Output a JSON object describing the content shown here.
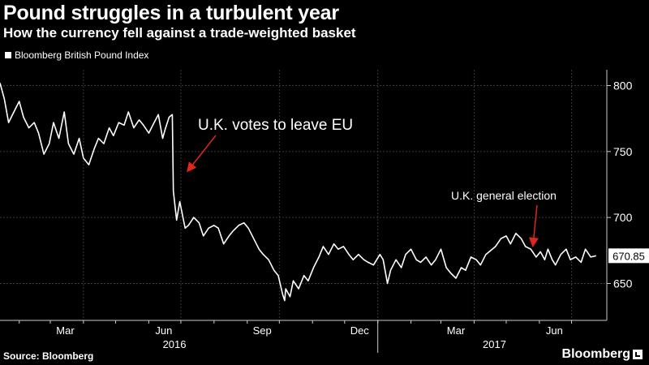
{
  "title": "Pound struggles in a turbulent year",
  "subtitle": "How the currency fell against a trade-weighted basket",
  "legend": "Bloomberg British Pound Index",
  "source": "Source: Bloomberg",
  "brand": "Bloomberg",
  "colors": {
    "background": "#000000",
    "line": "#ffffff",
    "grid": "#3a3a3a",
    "arrow": "#e0261d"
  },
  "chart_data": {
    "type": "line",
    "title": "Pound struggles in a turbulent year",
    "subtitle": "How the currency fell against a trade-weighted basket",
    "ylim": [
      622,
      812
    ],
    "y_ticks": [
      650,
      700,
      750,
      800
    ],
    "grid": true,
    "legend_position": "top-left",
    "x_tick_labels": [
      "Mar",
      "Jun",
      "Sep",
      "Dec",
      "Mar",
      "Jun"
    ],
    "year_labels": [
      "2016",
      "2017"
    ],
    "last_value_label": "670.85",
    "series": [
      {
        "name": "Bloomberg British Pound Index",
        "x": [
          "2016-01-14",
          "2016-01-18",
          "2016-01-22",
          "2016-01-27",
          "2016-02-01",
          "2016-02-05",
          "2016-02-10",
          "2016-02-15",
          "2016-02-19",
          "2016-02-24",
          "2016-02-29",
          "2016-03-04",
          "2016-03-09",
          "2016-03-14",
          "2016-03-18",
          "2016-03-23",
          "2016-03-28",
          "2016-04-01",
          "2016-04-06",
          "2016-04-11",
          "2016-04-15",
          "2016-04-20",
          "2016-04-25",
          "2016-04-29",
          "2016-05-04",
          "2016-05-09",
          "2016-05-13",
          "2016-05-18",
          "2016-05-23",
          "2016-05-27",
          "2016-06-01",
          "2016-06-06",
          "2016-06-10",
          "2016-06-14",
          "2016-06-16",
          "2016-06-20",
          "2016-06-23",
          "2016-06-24",
          "2016-06-27",
          "2016-06-30",
          "2016-07-05",
          "2016-07-08",
          "2016-07-13",
          "2016-07-18",
          "2016-07-22",
          "2016-07-27",
          "2016-08-01",
          "2016-08-05",
          "2016-08-10",
          "2016-08-15",
          "2016-08-19",
          "2016-08-24",
          "2016-08-29",
          "2016-09-02",
          "2016-09-07",
          "2016-09-12",
          "2016-09-16",
          "2016-09-21",
          "2016-09-26",
          "2016-09-30",
          "2016-10-04",
          "2016-10-06",
          "2016-10-07",
          "2016-10-11",
          "2016-10-14",
          "2016-10-19",
          "2016-10-24",
          "2016-10-28",
          "2016-11-02",
          "2016-11-07",
          "2016-11-11",
          "2016-11-16",
          "2016-11-21",
          "2016-11-25",
          "2016-11-30",
          "2016-12-05",
          "2016-12-09",
          "2016-12-14",
          "2016-12-19",
          "2016-12-23",
          "2016-12-28",
          "2017-01-03",
          "2017-01-06",
          "2017-01-10",
          "2017-01-13",
          "2017-01-18",
          "2017-01-23",
          "2017-01-27",
          "2017-02-01",
          "2017-02-06",
          "2017-02-10",
          "2017-02-15",
          "2017-02-20",
          "2017-02-24",
          "2017-03-01",
          "2017-03-06",
          "2017-03-10",
          "2017-03-15",
          "2017-03-20",
          "2017-03-24",
          "2017-03-29",
          "2017-04-03",
          "2017-04-07",
          "2017-04-12",
          "2017-04-18",
          "2017-04-21",
          "2017-04-26",
          "2017-05-01",
          "2017-05-05",
          "2017-05-10",
          "2017-05-15",
          "2017-05-19",
          "2017-05-24",
          "2017-05-29",
          "2017-06-02",
          "2017-06-06",
          "2017-06-09",
          "2017-06-13",
          "2017-06-16",
          "2017-06-21",
          "2017-06-26",
          "2017-06-30",
          "2017-07-05",
          "2017-07-10",
          "2017-07-14",
          "2017-07-19",
          "2017-07-24"
        ],
        "values": [
          802,
          790,
          772,
          780,
          788,
          776,
          768,
          772,
          764,
          748,
          756,
          772,
          760,
          780,
          756,
          748,
          760,
          745,
          740,
          752,
          760,
          756,
          768,
          762,
          772,
          770,
          780,
          768,
          774,
          770,
          764,
          772,
          778,
          760,
          766,
          776,
          778,
          720,
          698,
          712,
          692,
          694,
          700,
          696,
          686,
          692,
          694,
          692,
          680,
          686,
          690,
          694,
          696,
          692,
          684,
          676,
          672,
          668,
          660,
          656,
          642,
          637,
          646,
          640,
          652,
          646,
          656,
          652,
          662,
          670,
          678,
          672,
          680,
          676,
          678,
          672,
          668,
          672,
          668,
          666,
          664,
          672,
          668,
          650,
          660,
          668,
          662,
          672,
          676,
          668,
          666,
          670,
          664,
          668,
          676,
          662,
          658,
          654,
          662,
          660,
          670,
          668,
          664,
          672,
          676,
          678,
          684,
          686,
          680,
          688,
          684,
          678,
          676,
          670,
          674,
          668,
          676,
          668,
          664,
          672,
          676,
          668,
          670,
          666,
          676,
          670,
          671
        ]
      }
    ],
    "annotations": [
      {
        "text": "U.K. votes to leave EU",
        "x": "2016-06-23",
        "y": 750
      },
      {
        "text": "U.K. general election",
        "x": "2017-06-08",
        "y": 677
      }
    ]
  }
}
